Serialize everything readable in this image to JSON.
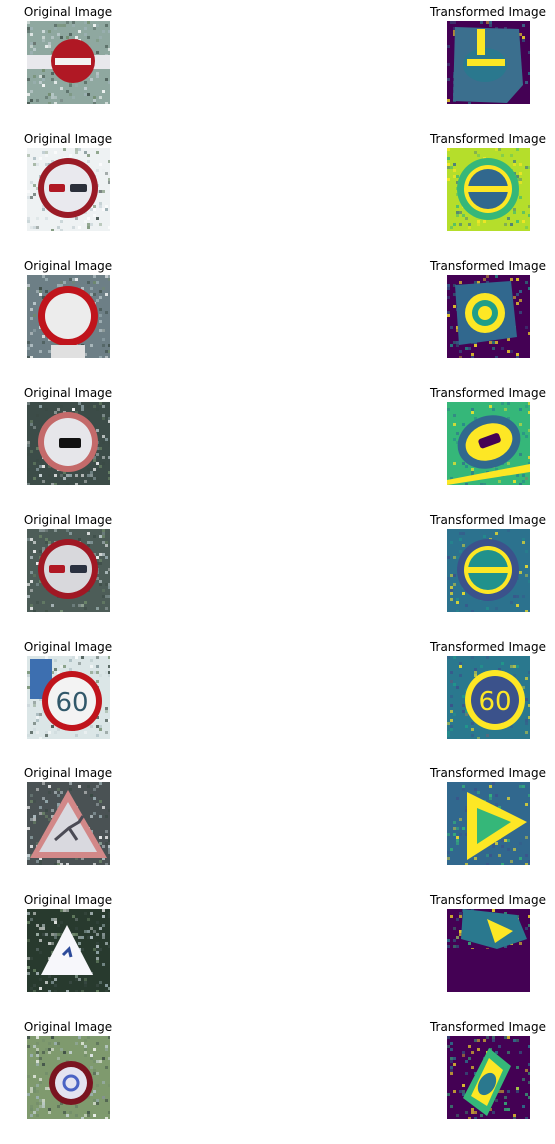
{
  "grid": {
    "rows": [
      {
        "original": {
          "caption": "Original Image",
          "sign": "no-entry",
          "palette": {
            "bg": "#8fa8a0",
            "ring": "#b01824",
            "fill": "#b01824",
            "bar": "#f2f2f2",
            "sym": "#ffffff"
          }
        },
        "transformed": {
          "caption": "Transformed Image",
          "sign": "no-entry-warped",
          "palette": {
            "bg": "#440154",
            "mid": "#3b6f8e",
            "hi": "#fde725",
            "lo": "#2a788e"
          }
        }
      },
      {
        "original": {
          "caption": "Original Image",
          "sign": "no-overtaking",
          "palette": {
            "bg": "#eef2f3",
            "ring": "#9a1b26",
            "fill": "#e9e9ee",
            "bar": "#2b2f3a",
            "sym": "#b01824"
          }
        },
        "transformed": {
          "caption": "Transformed Image",
          "sign": "no-overtaking-viridis",
          "palette": {
            "bg": "#b5de2b",
            "mid": "#31688e",
            "hi": "#fde725",
            "lo": "#35b779"
          }
        }
      },
      {
        "original": {
          "caption": "Original Image",
          "sign": "no-vehicles",
          "palette": {
            "bg": "#6d7f86",
            "ring": "#c0141c",
            "fill": "#ececec",
            "bar": "#ececec",
            "sym": "#ececec"
          }
        },
        "transformed": {
          "caption": "Transformed Image",
          "sign": "no-vehicles-warped",
          "palette": {
            "bg": "#440154",
            "mid": "#1f9e89",
            "hi": "#fde725",
            "lo": "#31688e"
          }
        }
      },
      {
        "original": {
          "caption": "Original Image",
          "sign": "no-overtaking-trucks",
          "palette": {
            "bg": "#3c4c48",
            "ring": "#c46a6a",
            "fill": "#e6e6ea",
            "bar": "#111111",
            "sym": "#111111"
          }
        },
        "transformed": {
          "caption": "Transformed Image",
          "sign": "no-overtaking-trucks-viridis",
          "palette": {
            "bg": "#35b779",
            "mid": "#31688e",
            "hi": "#fde725",
            "lo": "#26828e"
          }
        }
      },
      {
        "original": {
          "caption": "Original Image",
          "sign": "no-overtaking",
          "palette": {
            "bg": "#4d5d58",
            "ring": "#a01824",
            "fill": "#d8d8dc",
            "bar": "#2a3140",
            "sym": "#b01824"
          }
        },
        "transformed": {
          "caption": "Transformed Image",
          "sign": "no-overtaking-viridis-2",
          "palette": {
            "bg": "#2c728e",
            "mid": "#21918c",
            "hi": "#fde725",
            "lo": "#3b528b"
          }
        }
      },
      {
        "original": {
          "caption": "Original Image",
          "sign": "speed-60",
          "palette": {
            "bg": "#dbe6e7",
            "ring": "#c0141c",
            "fill": "#f3f3f3",
            "bar": "#31586a",
            "sym": "#31586a"
          }
        },
        "transformed": {
          "caption": "Transformed Image",
          "sign": "speed-60-viridis",
          "palette": {
            "bg": "#2a788e",
            "mid": "#3b528b",
            "hi": "#fde725",
            "lo": "#1f9e89"
          }
        }
      },
      {
        "original": {
          "caption": "Original Image",
          "sign": "deer-crossing",
          "palette": {
            "bg": "#4a5254",
            "ring": "#d28888",
            "fill": "#d9d9df",
            "bar": "#4b4b55",
            "sym": "#4b4b55"
          }
        },
        "transformed": {
          "caption": "Transformed Image",
          "sign": "deer-crossing-viridis",
          "palette": {
            "bg": "#31688e",
            "mid": "#35b779",
            "hi": "#fde725",
            "lo": "#3b528b"
          }
        }
      },
      {
        "original": {
          "caption": "Original Image",
          "sign": "road-bend",
          "palette": {
            "bg": "#283a2e",
            "ring": "#ffffff",
            "fill": "#f7f7fb",
            "bar": "#2d4b9a",
            "sym": "#2d4b9a"
          }
        },
        "transformed": {
          "caption": "Transformed Image",
          "sign": "road-bend-warped",
          "palette": {
            "bg": "#440154",
            "mid": "#2a788e",
            "hi": "#fde725",
            "lo": "#35b779"
          }
        }
      },
      {
        "original": {
          "caption": "Original Image",
          "sign": "speed-circle-noisy",
          "palette": {
            "bg": "#7f9a6e",
            "ring": "#7a1420",
            "fill": "#e3e3f0",
            "bar": "#4a63c4",
            "sym": "#4a63c4"
          }
        },
        "transformed": {
          "caption": "Transformed Image",
          "sign": "speed-circle-warped",
          "palette": {
            "bg": "#440154",
            "mid": "#2a788e",
            "hi": "#fde725",
            "lo": "#35b779"
          }
        }
      }
    ]
  }
}
